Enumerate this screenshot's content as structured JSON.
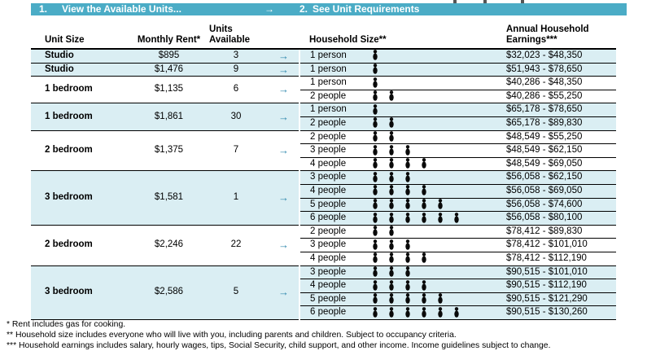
{
  "banner": {
    "step1_number": "1.",
    "step1_label": "View the Available Units...",
    "arrow": "→",
    "step2_number": "2.",
    "step2_label": "See Unit Requirements"
  },
  "columns": {
    "unit_size": "Unit Size",
    "monthly_rent": "Monthly Rent*",
    "units_available_line1": "Units",
    "units_available_line2": "Available",
    "household_size": "Household Size**",
    "annual_earnings_line1": "Annual Household",
    "annual_earnings_line2": "Earnings***"
  },
  "table": {
    "arrow": "→",
    "groups": [
      {
        "unit_size": "Studio",
        "monthly_rent": "$895",
        "units_available": "3",
        "shade": "blue",
        "rows": [
          {
            "household_size": "1 person",
            "persons": 1,
            "earnings": "$32,023 - $48,350"
          }
        ]
      },
      {
        "unit_size": "Studio",
        "monthly_rent": "$1,476",
        "units_available": "9",
        "shade": "blue",
        "rows": [
          {
            "household_size": "1 person",
            "persons": 1,
            "earnings": "$51,943 - $78,650"
          }
        ]
      },
      {
        "unit_size": "1 bedroom",
        "monthly_rent": "$1,135",
        "units_available": "6",
        "shade": "white",
        "rows": [
          {
            "household_size": "1 person",
            "persons": 1,
            "earnings": "$40,286 - $48,350"
          },
          {
            "household_size": "2 people",
            "persons": 2,
            "earnings": "$40,286 - $55,250"
          }
        ]
      },
      {
        "unit_size": "1 bedroom",
        "monthly_rent": "$1,861",
        "units_available": "30",
        "shade": "blue",
        "rows": [
          {
            "household_size": "1 person",
            "persons": 1,
            "earnings": "$65,178 - $78,650"
          },
          {
            "household_size": "2 people",
            "persons": 2,
            "earnings": "$65,178 - $89,830"
          }
        ]
      },
      {
        "unit_size": "2 bedroom",
        "monthly_rent": "$1,375",
        "units_available": "7",
        "shade": "white",
        "rows": [
          {
            "household_size": "2 people",
            "persons": 2,
            "earnings": "$48,549 - $55,250"
          },
          {
            "household_size": "3 people",
            "persons": 3,
            "earnings": "$48,549 - $62,150"
          },
          {
            "household_size": "4 people",
            "persons": 4,
            "earnings": "$48,549 - $69,050"
          }
        ]
      },
      {
        "unit_size": "3 bedroom",
        "monthly_rent": "$1,581",
        "units_available": "1",
        "shade": "blue",
        "rows": [
          {
            "household_size": "3 people",
            "persons": 3,
            "earnings": "$56,058 - $62,150"
          },
          {
            "household_size": "4 people",
            "persons": 4,
            "earnings": "$56,058 - $69,050"
          },
          {
            "household_size": "5 people",
            "persons": 5,
            "earnings": "$56,058 - $74,600"
          },
          {
            "household_size": "6 people",
            "persons": 6,
            "earnings": "$56,058 - $80,100"
          }
        ]
      },
      {
        "unit_size": "2 bedroom",
        "monthly_rent": "$2,246",
        "units_available": "22",
        "shade": "white",
        "rows": [
          {
            "household_size": "2 people",
            "persons": 2,
            "earnings": "$78,412 - $89,830"
          },
          {
            "household_size": "3 people",
            "persons": 3,
            "earnings": "$78,412 - $101,010"
          },
          {
            "household_size": "4 people",
            "persons": 4,
            "earnings": "$78,412 - $112,190"
          }
        ]
      },
      {
        "unit_size": "3 bedroom",
        "monthly_rent": "$2,586",
        "units_available": "5",
        "shade": "blue",
        "rows": [
          {
            "household_size": "3 people",
            "persons": 3,
            "earnings": "$90,515 - $101,010"
          },
          {
            "household_size": "4 people",
            "persons": 4,
            "earnings": "$90,515 - $112,190"
          },
          {
            "household_size": "5 people",
            "persons": 5,
            "earnings": "$90,515 - $121,290"
          },
          {
            "household_size": "6 people",
            "persons": 6,
            "earnings": "$90,515 - $130,260"
          }
        ]
      }
    ]
  },
  "footnotes": [
    "* Rent includes gas for cooking.",
    "** Household size includes everyone who will live with you, including parents and children. Subject to occupancy criteria.",
    "*** Household earnings includes salary, hourly wages, tips, Social Security, child support, and other income. Income guidelines subject to change."
  ],
  "colors": {
    "banner_teal": "#4BACC6",
    "row_light_blue": "#DAEEF3",
    "arrow_teal": "#3189AE",
    "line_black": "#000000"
  }
}
